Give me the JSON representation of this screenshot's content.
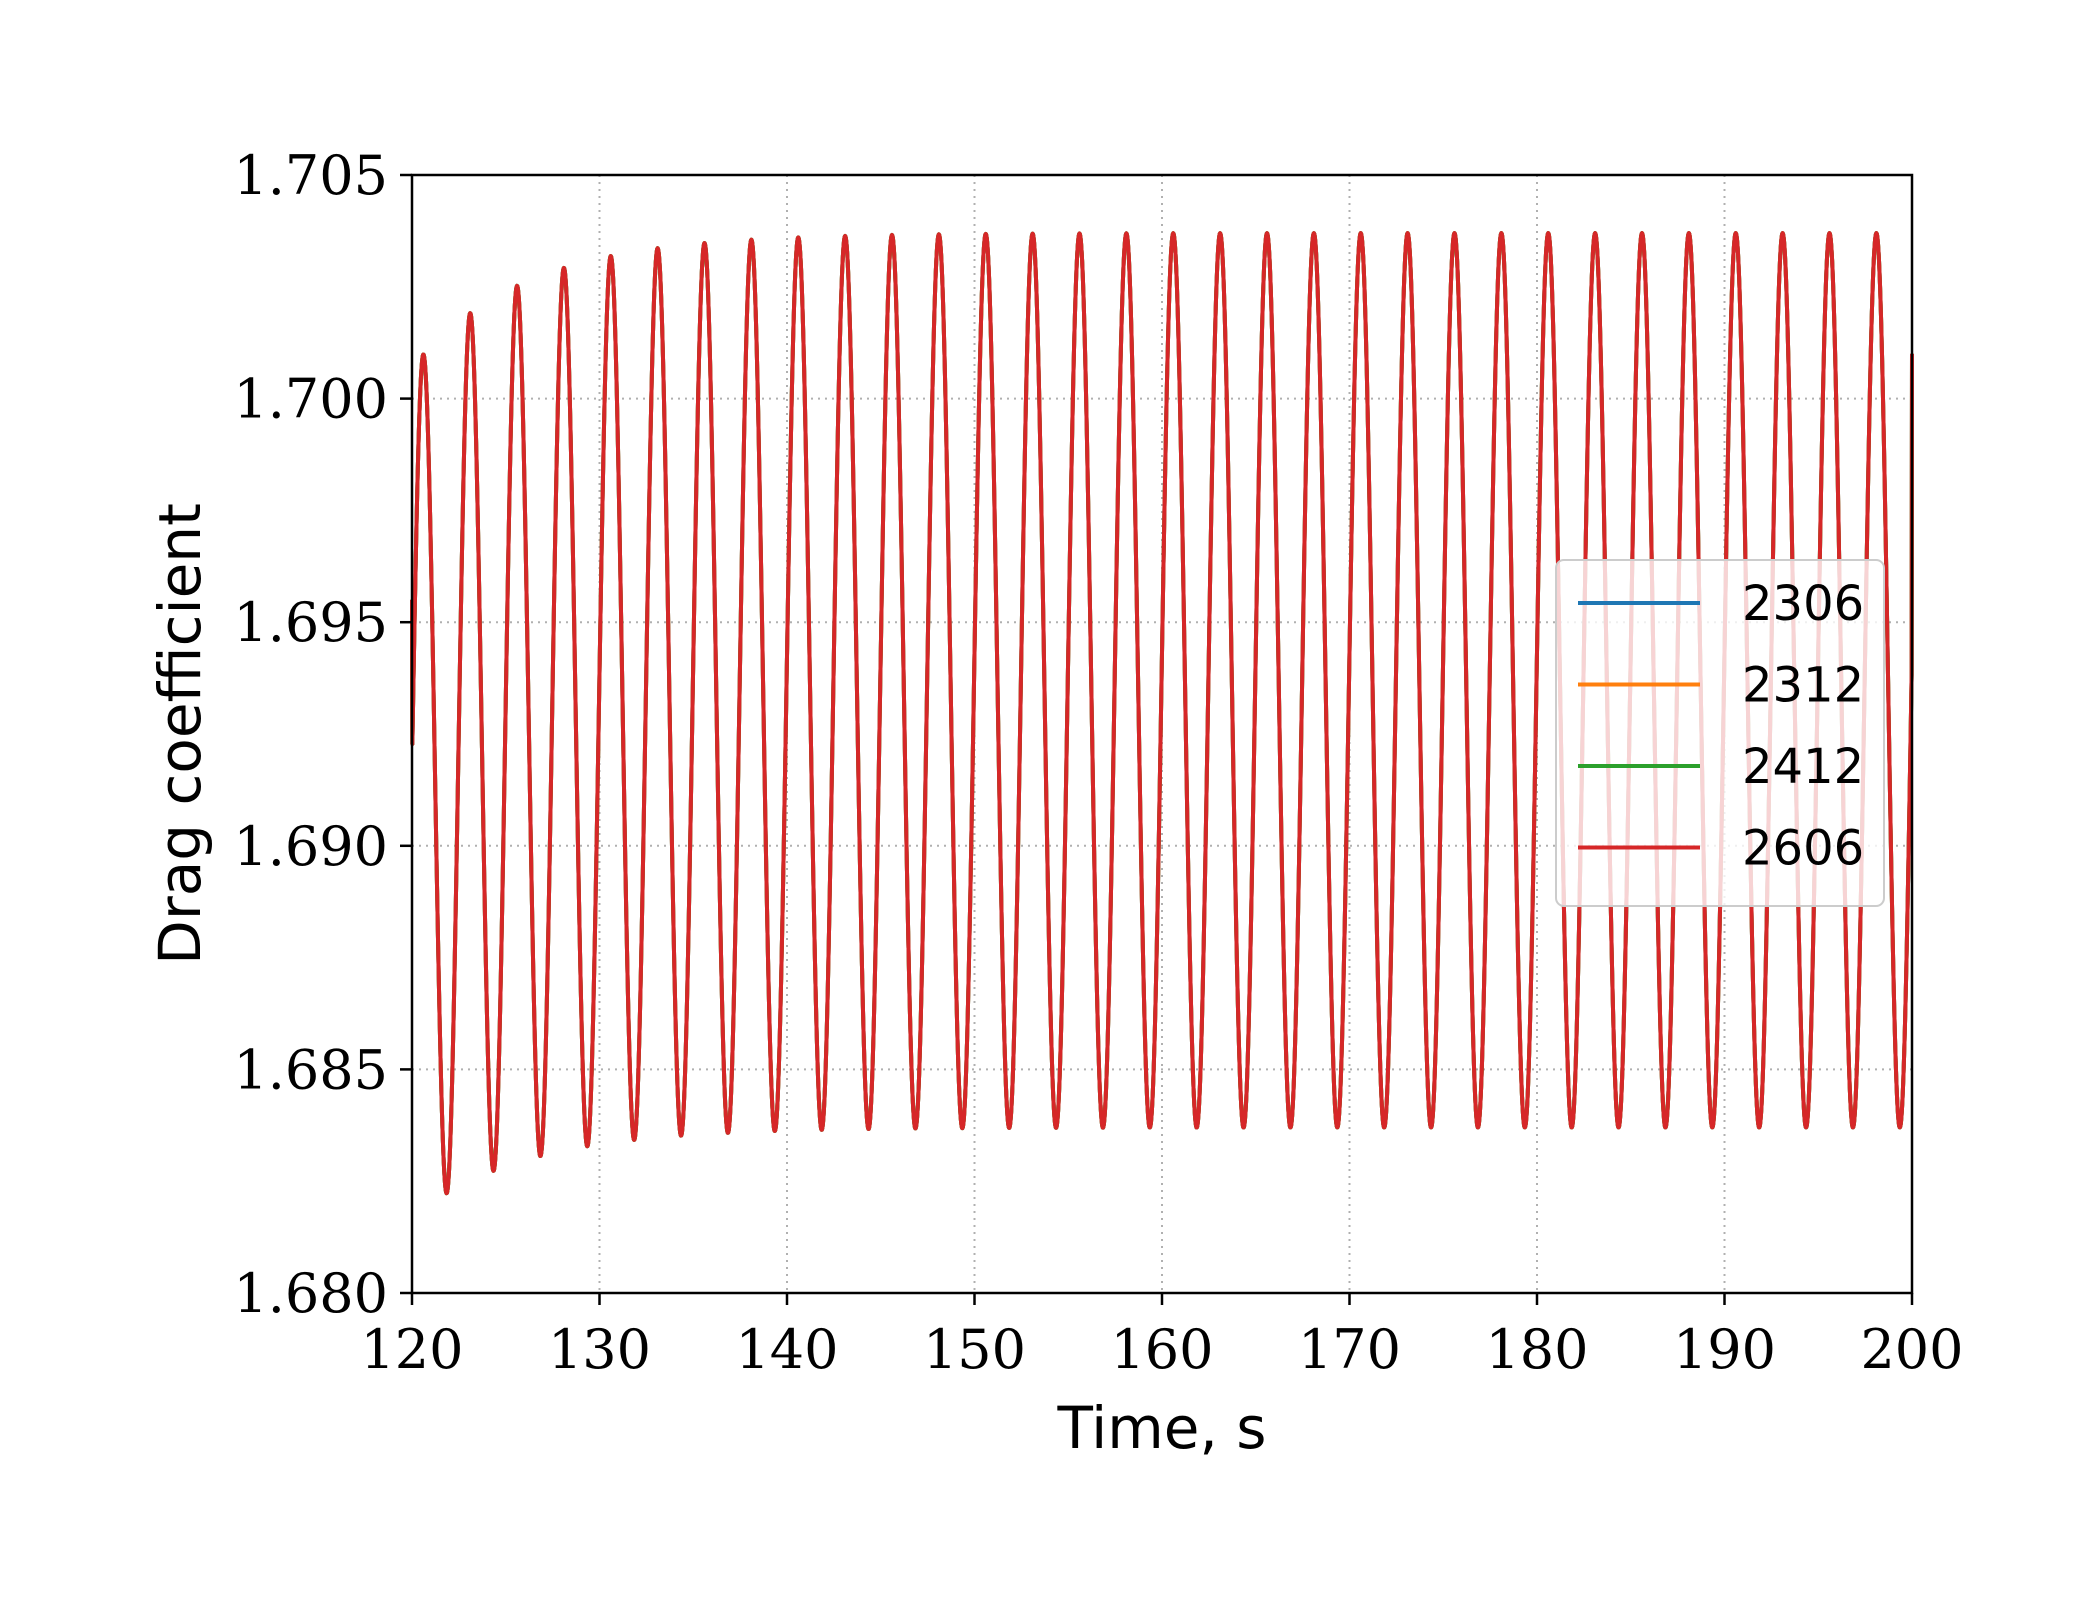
{
  "chart_data": {
    "type": "line",
    "xlabel": "Time, s",
    "ylabel": "Drag coefficient",
    "xlim": [
      120,
      200
    ],
    "ylim": [
      1.68,
      1.705
    ],
    "x_ticks": [
      120,
      130,
      140,
      150,
      160,
      170,
      180,
      190,
      200
    ],
    "x_tick_labels": [
      "120",
      "130",
      "140",
      "150",
      "160",
      "170",
      "180",
      "190",
      "200"
    ],
    "y_ticks": [
      1.68,
      1.685,
      1.69,
      1.695,
      1.7,
      1.705
    ],
    "y_tick_labels": [
      "1.680",
      "1.685",
      "1.690",
      "1.695",
      "1.700",
      "1.705"
    ],
    "grid": true,
    "legend_position": "right",
    "series": [
      {
        "name": "2306",
        "color": "#1f77b4"
      },
      {
        "name": "2312",
        "color": "#ff7f0e"
      },
      {
        "name": "2412",
        "color": "#2ca02c"
      },
      {
        "name": "2606",
        "color": "#d62728"
      }
    ],
    "signal": {
      "period_s": 2.5,
      "mean_start": 1.6912,
      "mean_end": 1.6937,
      "amplitude_start": 0.0095,
      "amplitude_end": 0.01,
      "decay_time_s": 6,
      "first_peak_time_s": 120.6,
      "end_value": 1.701
    }
  }
}
